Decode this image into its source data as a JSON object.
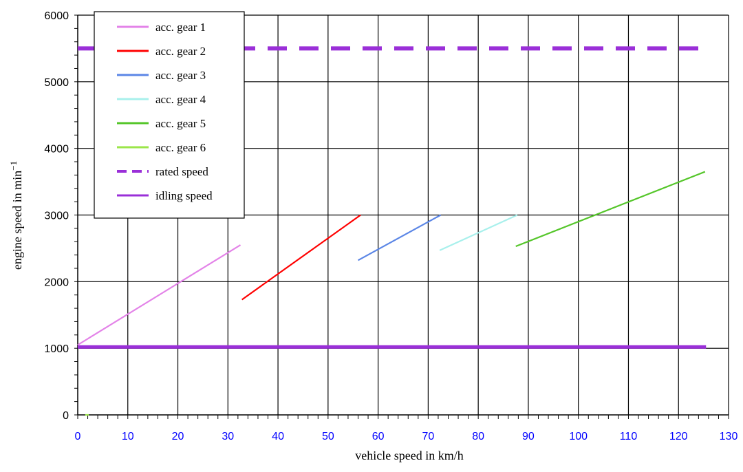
{
  "chart_data": {
    "type": "line",
    "title": "",
    "xlabel": "vehicle speed  in  km/h",
    "ylabel": "engine  speed  in  min",
    "ylabel_superscript": "−1",
    "xlim": [
      0,
      130
    ],
    "ylim": [
      0,
      6000
    ],
    "xticks": [
      0,
      10,
      20,
      30,
      40,
      50,
      60,
      70,
      80,
      90,
      100,
      110,
      120,
      130
    ],
    "yticks": [
      0,
      1000,
      2000,
      3000,
      4000,
      5000,
      6000
    ],
    "x_minor_step": 2,
    "y_minor_step": 200,
    "grid": true,
    "legend_position": "top-left",
    "series": [
      {
        "name": "acc.  gear  1",
        "color": "#e383e8",
        "style": "solid",
        "points": [
          [
            0,
            1050
          ],
          [
            32.5,
            2550
          ]
        ]
      },
      {
        "name": "acc.  gear  2",
        "color": "#ff0000",
        "style": "solid",
        "points": [
          [
            32.8,
            1730
          ],
          [
            56.5,
            3000
          ]
        ]
      },
      {
        "name": "acc.  gear  3",
        "color": "#5b86e6",
        "style": "solid",
        "points": [
          [
            56,
            2320
          ],
          [
            72.5,
            3000
          ]
        ]
      },
      {
        "name": "acc.  gear  4",
        "color": "#a8f0ec",
        "style": "solid",
        "points": [
          [
            72.3,
            2470
          ],
          [
            87.8,
            3000
          ]
        ]
      },
      {
        "name": "acc.  gear  5",
        "color": "#55c62a",
        "style": "solid",
        "points": [
          [
            87.5,
            2530
          ],
          [
            125.3,
            3650
          ]
        ]
      },
      {
        "name": "acc.  gear  6",
        "color": "#9be64a",
        "style": "solid",
        "points": [
          [
            1.5,
            0
          ],
          [
            2.2,
            0
          ]
        ]
      },
      {
        "name": "rated speed",
        "color": "#9a2fd8",
        "style": "dashed",
        "points": [
          [
            0,
            5500
          ],
          [
            125.5,
            5500
          ]
        ]
      },
      {
        "name": "idling speed",
        "color": "#9a2fd8",
        "style": "solid",
        "points": [
          [
            0,
            1020
          ],
          [
            125.5,
            1020
          ]
        ]
      }
    ]
  }
}
